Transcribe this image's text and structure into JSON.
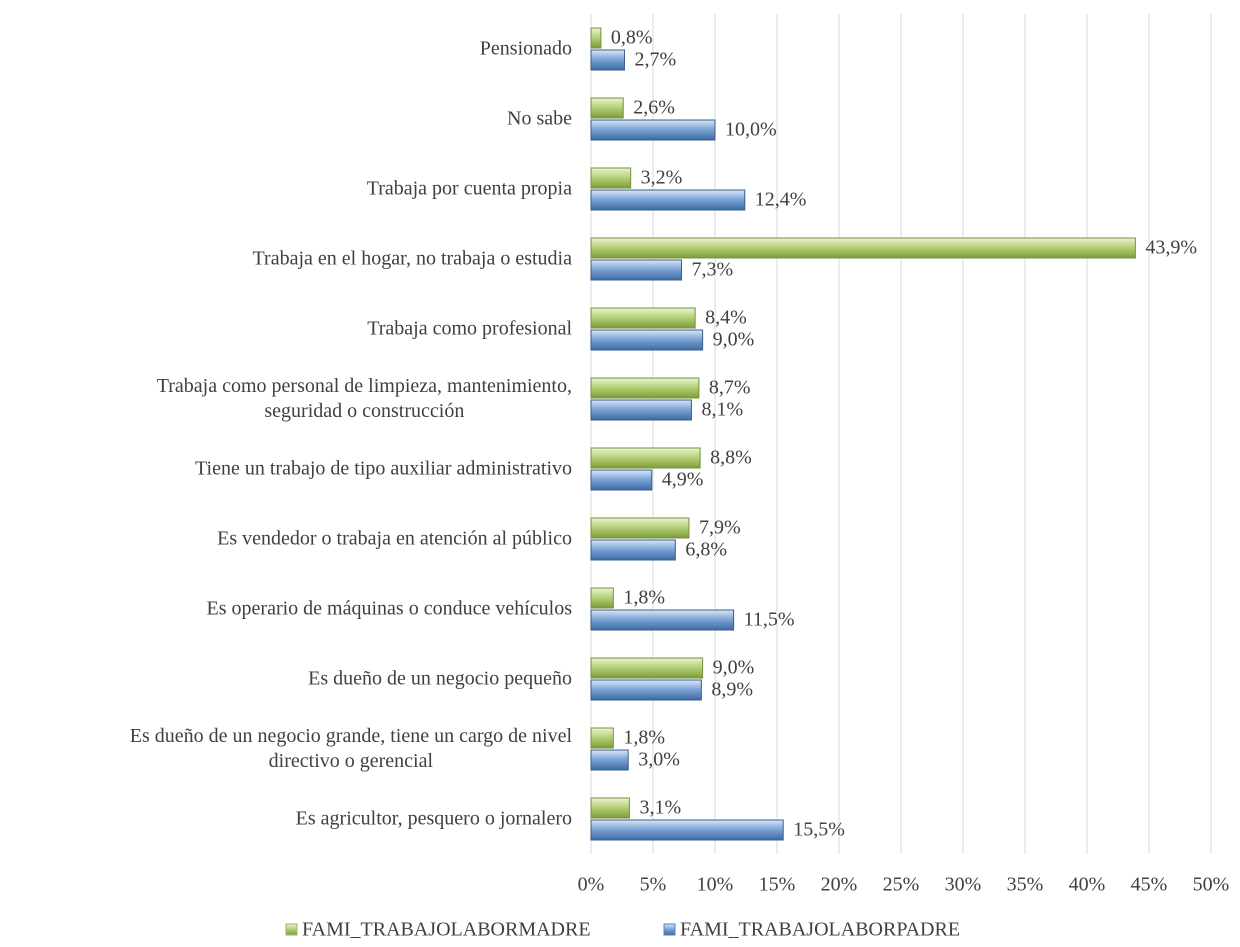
{
  "chart_data": {
    "type": "hbar",
    "categories": [
      "Pensionado",
      "No sabe",
      "Trabaja por cuenta propia",
      "Trabaja en el hogar, no trabaja o estudia",
      "Trabaja como profesional",
      "Trabaja como personal de limpieza, mantenimiento,\nseguridad o construcción",
      "Tiene un trabajo de tipo auxiliar administrativo",
      "Es vendedor o trabaja en atención al público",
      "Es operario de máquinas o conduce vehículos",
      "Es dueño de un negocio pequeño",
      "Es dueño de un negocio grande, tiene un cargo de nivel\ndirectivo o gerencial",
      "Es agricultor, pesquero o jornalero"
    ],
    "series": [
      {
        "name": "FAMI_TRABAJOLABORMADRE",
        "color": "#9bbb59",
        "values": [
          0.8,
          2.6,
          3.2,
          43.9,
          8.4,
          8.7,
          8.8,
          7.9,
          1.8,
          9.0,
          1.8,
          3.1
        ],
        "value_labels": [
          "0,8%",
          "2,6%",
          "3,2%",
          "43,9%",
          "8,4%",
          "8,7%",
          "8,8%",
          "7,9%",
          "1,8%",
          "9,0%",
          "1,8%",
          "3,1%"
        ]
      },
      {
        "name": "FAMI_TRABAJOLABORPADRE",
        "color": "#4f81bd",
        "values": [
          2.7,
          10.0,
          12.4,
          7.3,
          9.0,
          8.1,
          4.9,
          6.8,
          11.5,
          8.9,
          3.0,
          15.5
        ],
        "value_labels": [
          "2,7%",
          "10,0%",
          "12,4%",
          "7,3%",
          "9,0%",
          "8,1%",
          "4,9%",
          "6,8%",
          "11,5%",
          "8,9%",
          "3,0%",
          "15,5%"
        ]
      }
    ],
    "xlim": [
      0,
      50
    ],
    "xticks": [
      {
        "value": 0,
        "label": "0%"
      },
      {
        "value": 5,
        "label": "5%"
      },
      {
        "value": 10,
        "label": "10%"
      },
      {
        "value": 15,
        "label": "15%"
      },
      {
        "value": 20,
        "label": "20%"
      },
      {
        "value": 25,
        "label": "25%"
      },
      {
        "value": 30,
        "label": "30%"
      },
      {
        "value": 35,
        "label": "35%"
      },
      {
        "value": 40,
        "label": "40%"
      },
      {
        "value": 45,
        "label": "45%"
      },
      {
        "value": 50,
        "label": "50%"
      }
    ],
    "grid": true,
    "legend": "bottom"
  }
}
